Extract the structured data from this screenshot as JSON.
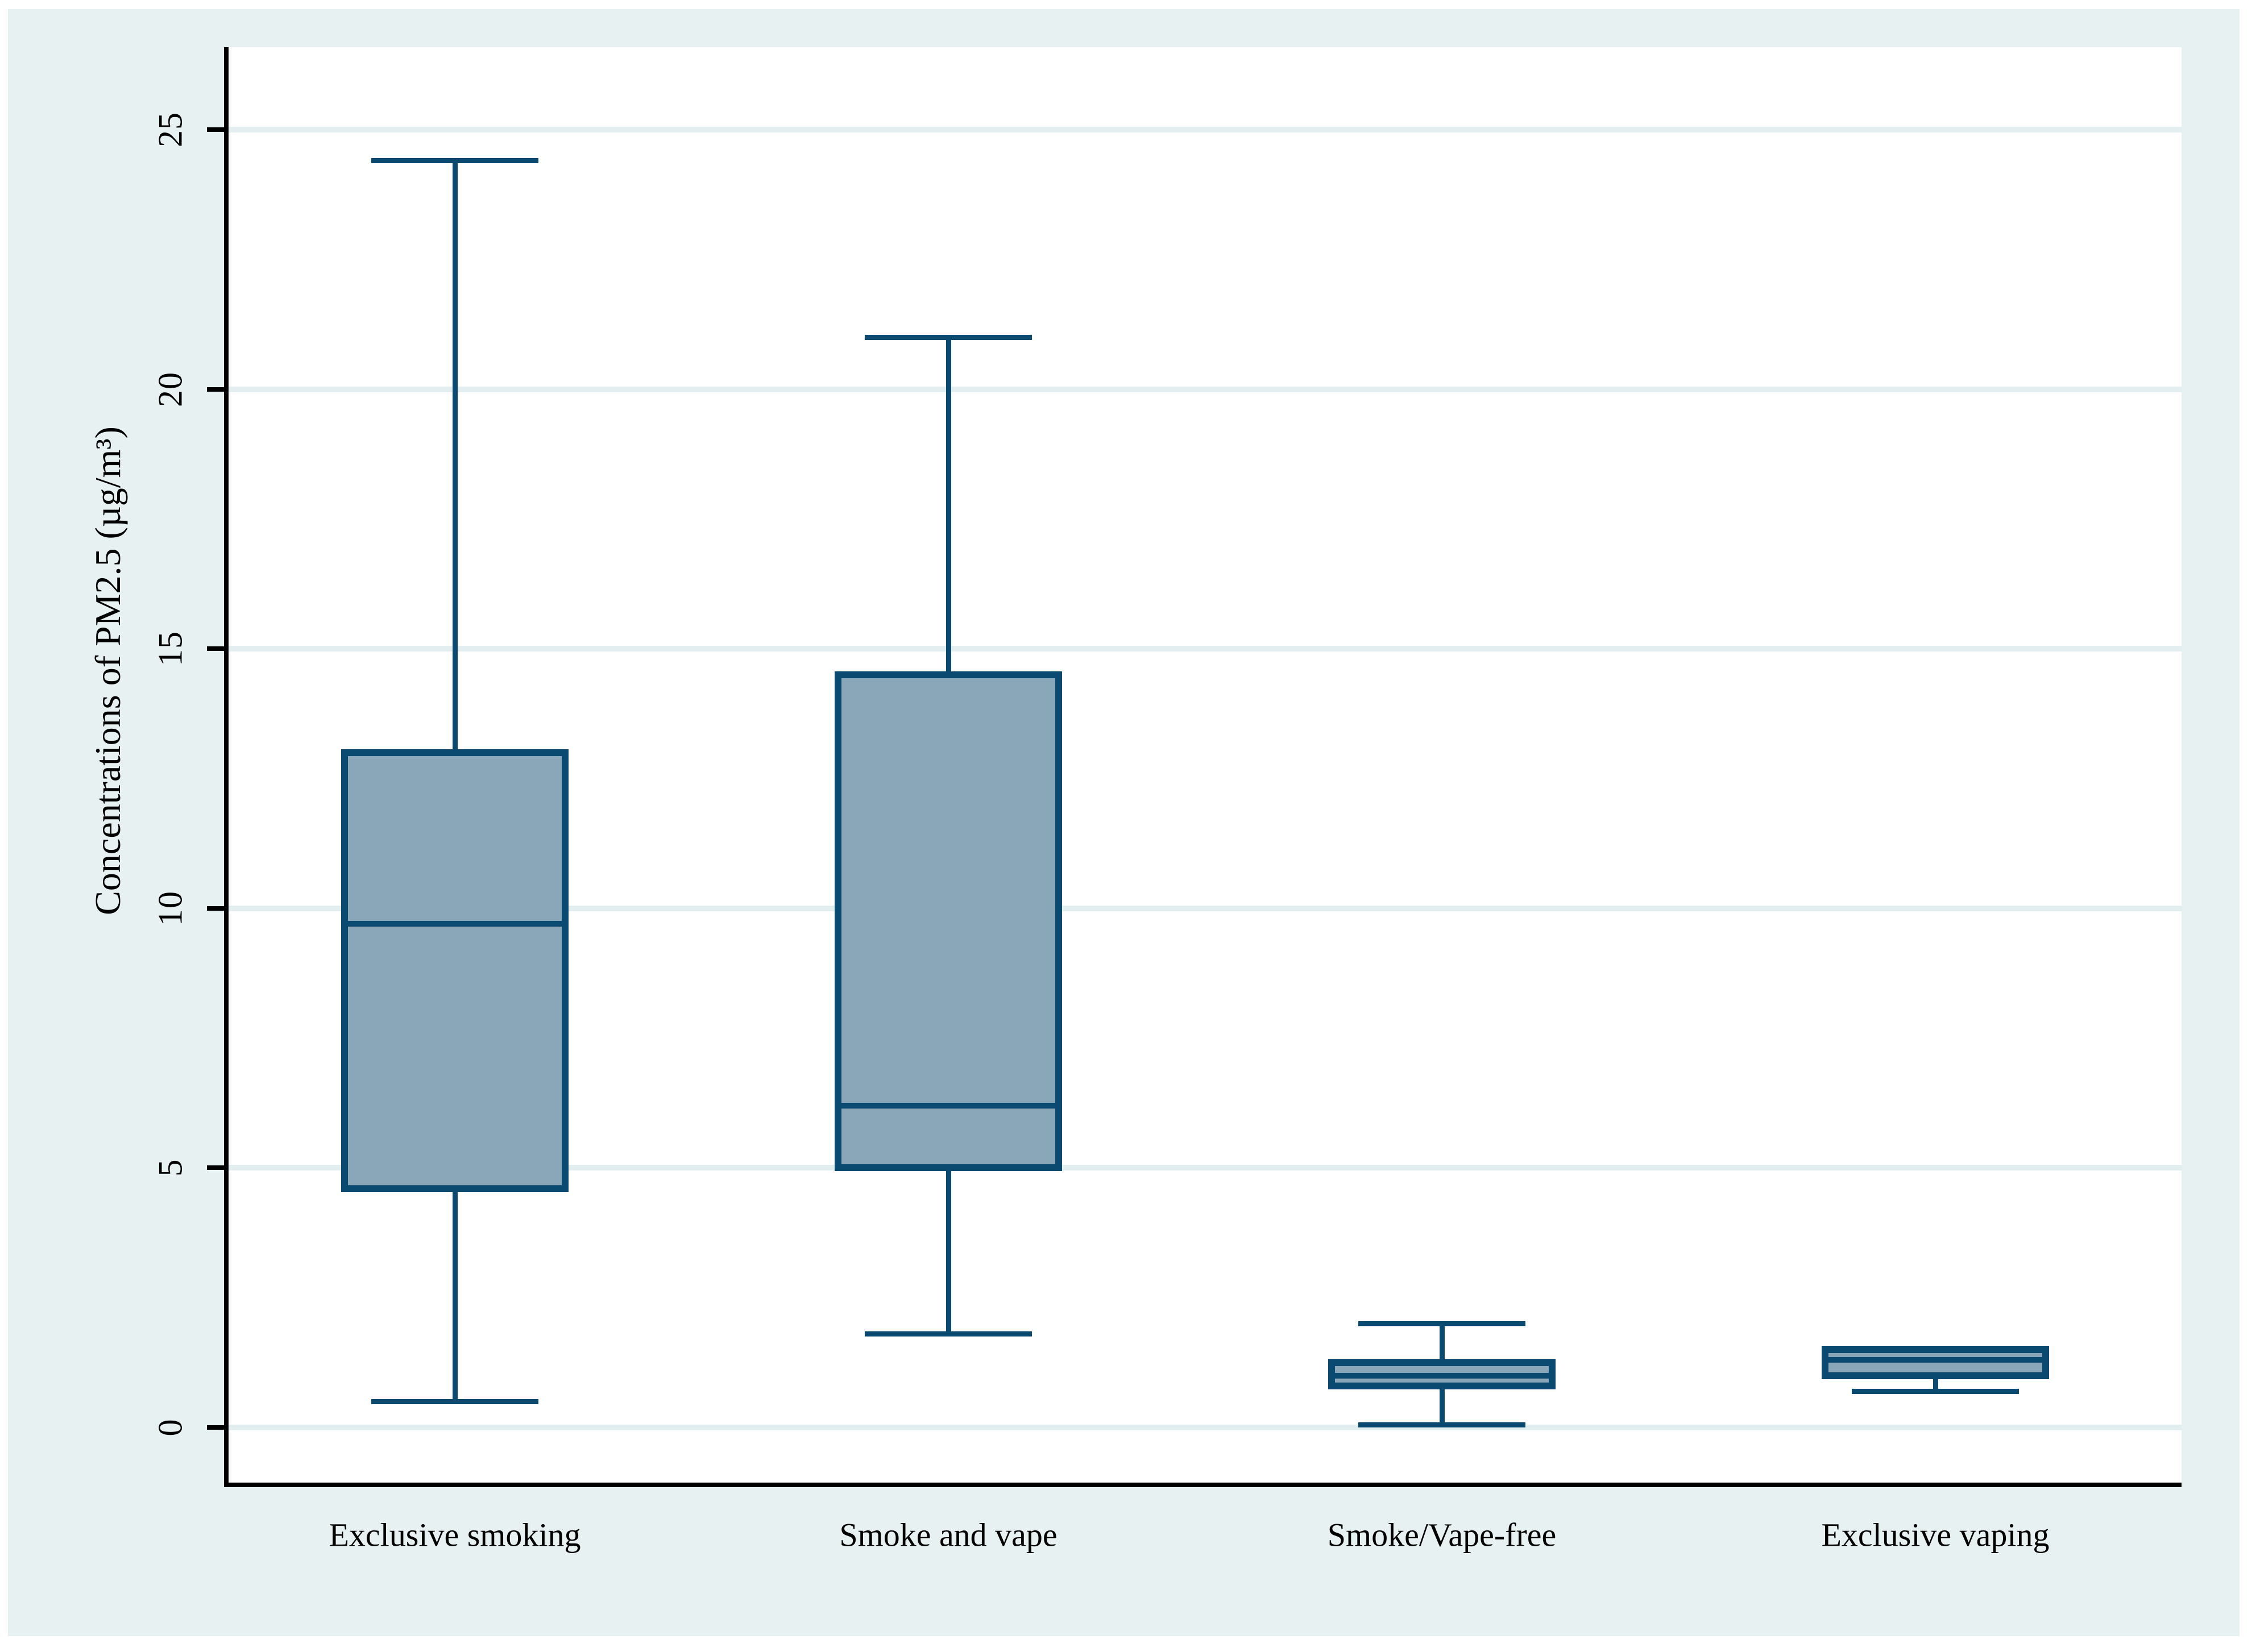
{
  "style": {
    "figure_background": "#e7f1f1",
    "plot_background": "#ffffff",
    "gridline_color": "#e3eef1",
    "axis_color": "#000000",
    "box_fill": "#8aa7b9",
    "box_border": "#0a4a70",
    "text_color": "#000000"
  },
  "chart_data": {
    "type": "box",
    "title": "",
    "ylabel": "Concentrations of PM2.5 (µg/m³)",
    "xlabel": "",
    "categories": [
      "Exclusive smoking",
      "Smoke and vape",
      "Smoke/Vape-free",
      "Exclusive vaping"
    ],
    "yticks": [
      0,
      5,
      10,
      15,
      20,
      25
    ],
    "ylim": [
      -1.1,
      26.6
    ],
    "grid": "horizontal",
    "legend": "none",
    "series": [
      {
        "category": "Exclusive smoking",
        "min": 0.5,
        "q1": 4.6,
        "median": 9.7,
        "q3": 13.0,
        "max": 24.4,
        "upper_whisker": true,
        "lower_whisker": true
      },
      {
        "category": "Smoke and vape",
        "min": 1.8,
        "q1": 5.0,
        "median": 6.2,
        "q3": 14.5,
        "max": 21.0,
        "upper_whisker": true,
        "lower_whisker": true
      },
      {
        "category": "Smoke/Vape-free",
        "min": 0.05,
        "q1": 0.8,
        "median": 1.0,
        "q3": 1.25,
        "max": 2.0,
        "upper_whisker": true,
        "lower_whisker": true
      },
      {
        "category": "Exclusive vaping",
        "min": 0.7,
        "q1": 1.0,
        "median": 1.3,
        "q3": 1.5,
        "max": 1.5,
        "upper_whisker": false,
        "lower_whisker": true
      }
    ]
  }
}
